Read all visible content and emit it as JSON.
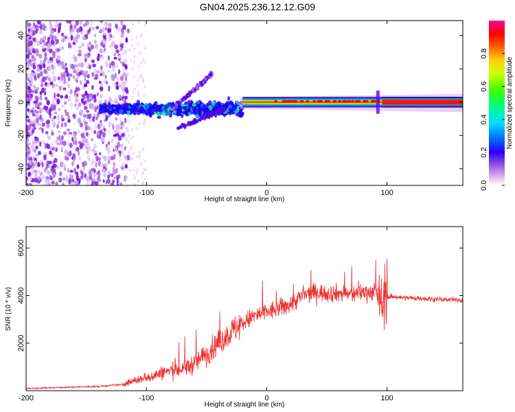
{
  "title": "GN04.2025.236.12.12.G09",
  "chart_data": [
    {
      "type": "heatmap",
      "title": "GN04.2025.236.12.12.G09",
      "xlabel": "Height of straight line (km)",
      "ylabel": "Frequency (Hz)",
      "xlim": [
        -200,
        163
      ],
      "ylim": [
        -50,
        49
      ],
      "xticks": [
        -200,
        -100,
        0,
        100
      ],
      "yticks": [
        -40,
        -20,
        0,
        20,
        40
      ],
      "xtick_labels": [
        "-200",
        "-100",
        "0",
        "100"
      ],
      "ytick_labels": [
        "-40",
        "-20",
        "0",
        "20",
        "40"
      ],
      "colorbar": {
        "label": "Normalized spectral amplitude",
        "range": [
          0,
          1
        ],
        "ticks": [
          0,
          0.2,
          0.4,
          0.6,
          0.8
        ],
        "tick_labels": [
          "0.0",
          "0.2",
          "0.4",
          "0.6",
          "0.8"
        ]
      }
    },
    {
      "type": "line",
      "xlabel": "Height of straight line (km)",
      "ylabel": "SNR (10 * v/v)",
      "xlim": [
        -200,
        163
      ],
      "ylim": [
        0,
        6900
      ],
      "xticks": [
        -200,
        -100,
        0,
        100
      ],
      "yticks": [
        2000,
        4000,
        6000
      ],
      "xtick_labels": [
        "-200",
        "-100",
        "0",
        "100"
      ],
      "ytick_labels": [
        "2000",
        "4000",
        "6000"
      ],
      "color": "#ee3333",
      "series": [
        {
          "name": "SNR",
          "x": [
            -200,
            -180,
            -160,
            -140,
            -120,
            -110,
            -100,
            -90,
            -80,
            -70,
            -60,
            -50,
            -40,
            -30,
            -20,
            -10,
            0,
            10,
            20,
            30,
            40,
            50,
            60,
            70,
            80,
            90,
            95,
            100,
            105,
            120,
            140,
            163
          ],
          "y": [
            100,
            120,
            150,
            180,
            260,
            420,
            560,
            700,
            850,
            900,
            1150,
            1550,
            2000,
            2450,
            2850,
            3150,
            3300,
            3450,
            3650,
            4000,
            4150,
            4100,
            4100,
            4050,
            4150,
            4150,
            3500,
            3950,
            3950,
            3900,
            3850,
            3800
          ]
        }
      ]
    }
  ]
}
